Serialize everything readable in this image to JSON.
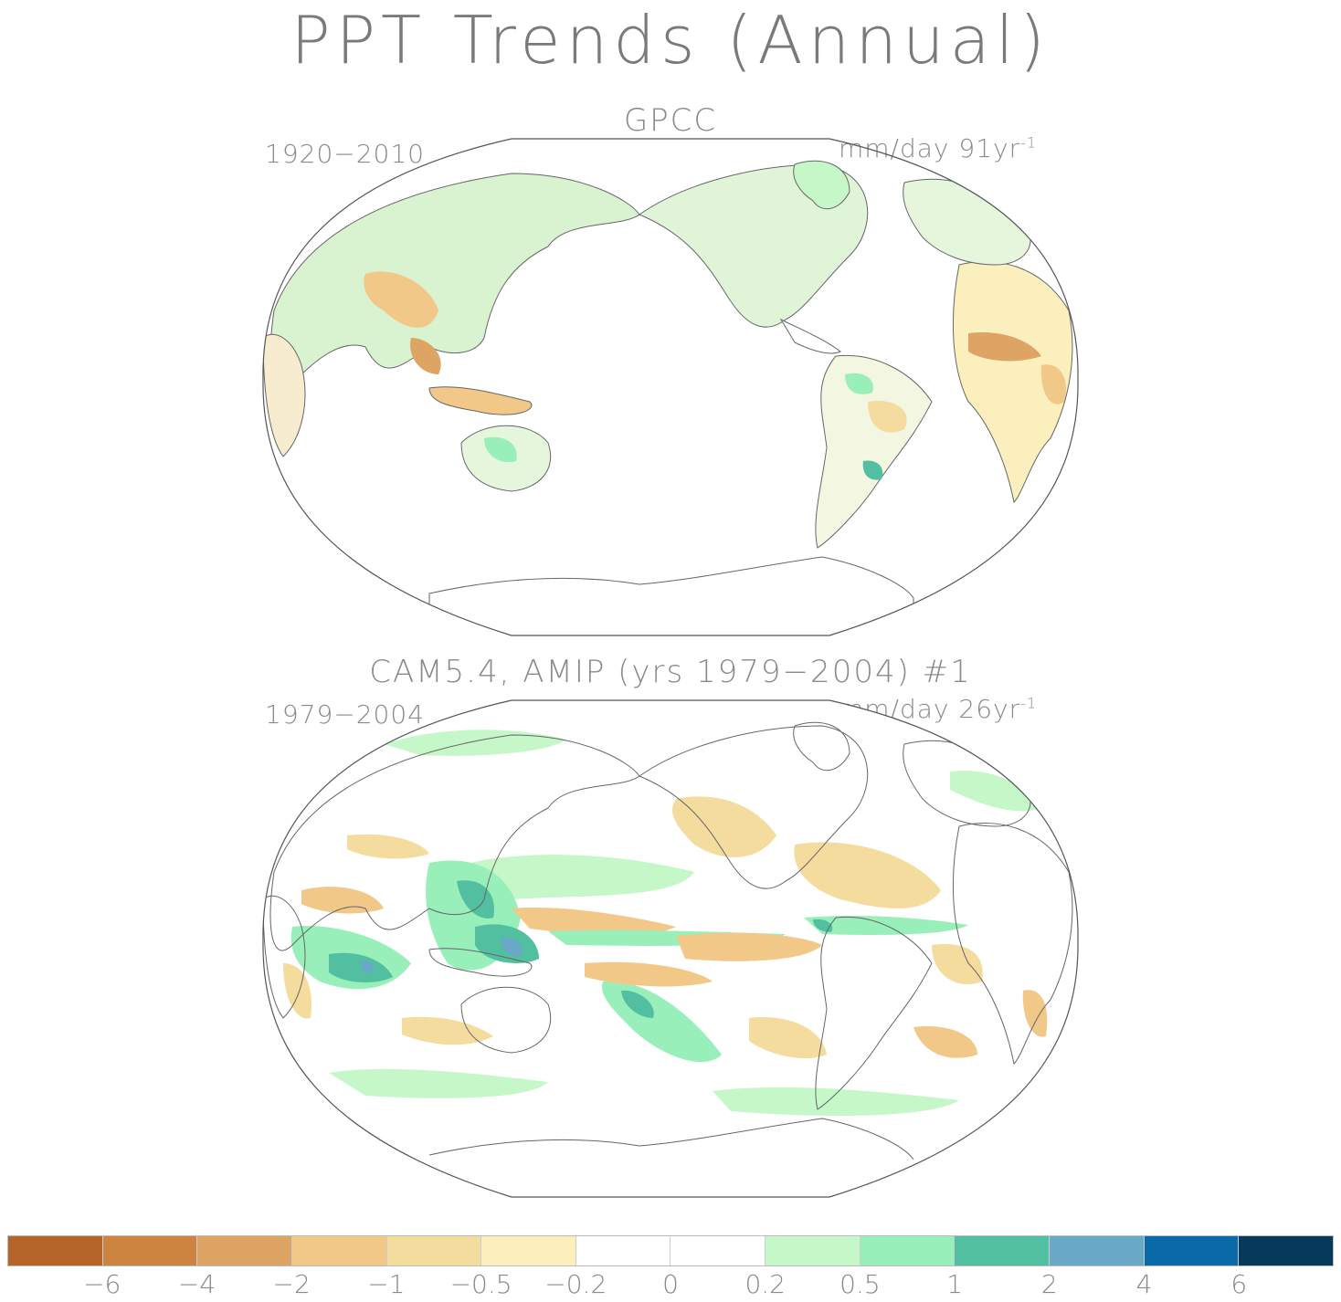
{
  "title": "PPT Trends (Annual)",
  "panels": [
    {
      "title": "GPCC",
      "period": "1920-2010",
      "units": "mm/day 91yr",
      "units_exp": "-1"
    },
    {
      "title": "CAM5.4, AMIP (yrs 1979-2004)      #1",
      "period": "1979-2004",
      "units": "mm/day 26yr",
      "units_exp": "-1"
    }
  ],
  "colorbar": {
    "colors": [
      "#b5652a",
      "#cc8440",
      "#dea463",
      "#f1c888",
      "#f3dc9e",
      "#fbf0bd",
      "#ffffff",
      "#ffffff",
      "#c6f7c8",
      "#98efba",
      "#52c0a0",
      "#6aa8c8",
      "#0a69a8",
      "#06395a"
    ],
    "tick_labels": [
      "-6",
      "-4",
      "-2",
      "-1",
      "-0.5",
      "-0.2",
      "0",
      "0.2",
      "0.5",
      "1",
      "2",
      "4",
      "6"
    ]
  },
  "chart_data": {
    "type": "heatmap",
    "title": "PPT Trends (Annual)",
    "projection": "Robinson, Pacific-centered",
    "panels": [
      {
        "name": "GPCC",
        "period": "1920-2010",
        "units": "mm/day 91yr-1",
        "coverage": "land only"
      },
      {
        "name": "CAM5.4, AMIP (yrs 1979-2004) #1",
        "period": "1979-2004",
        "units": "mm/day 26yr-1",
        "coverage": "global"
      }
    ],
    "levels": [
      -6,
      -4,
      -2,
      -1,
      -0.5,
      -0.2,
      0,
      0.2,
      0.5,
      1,
      2,
      4,
      6
    ]
  }
}
